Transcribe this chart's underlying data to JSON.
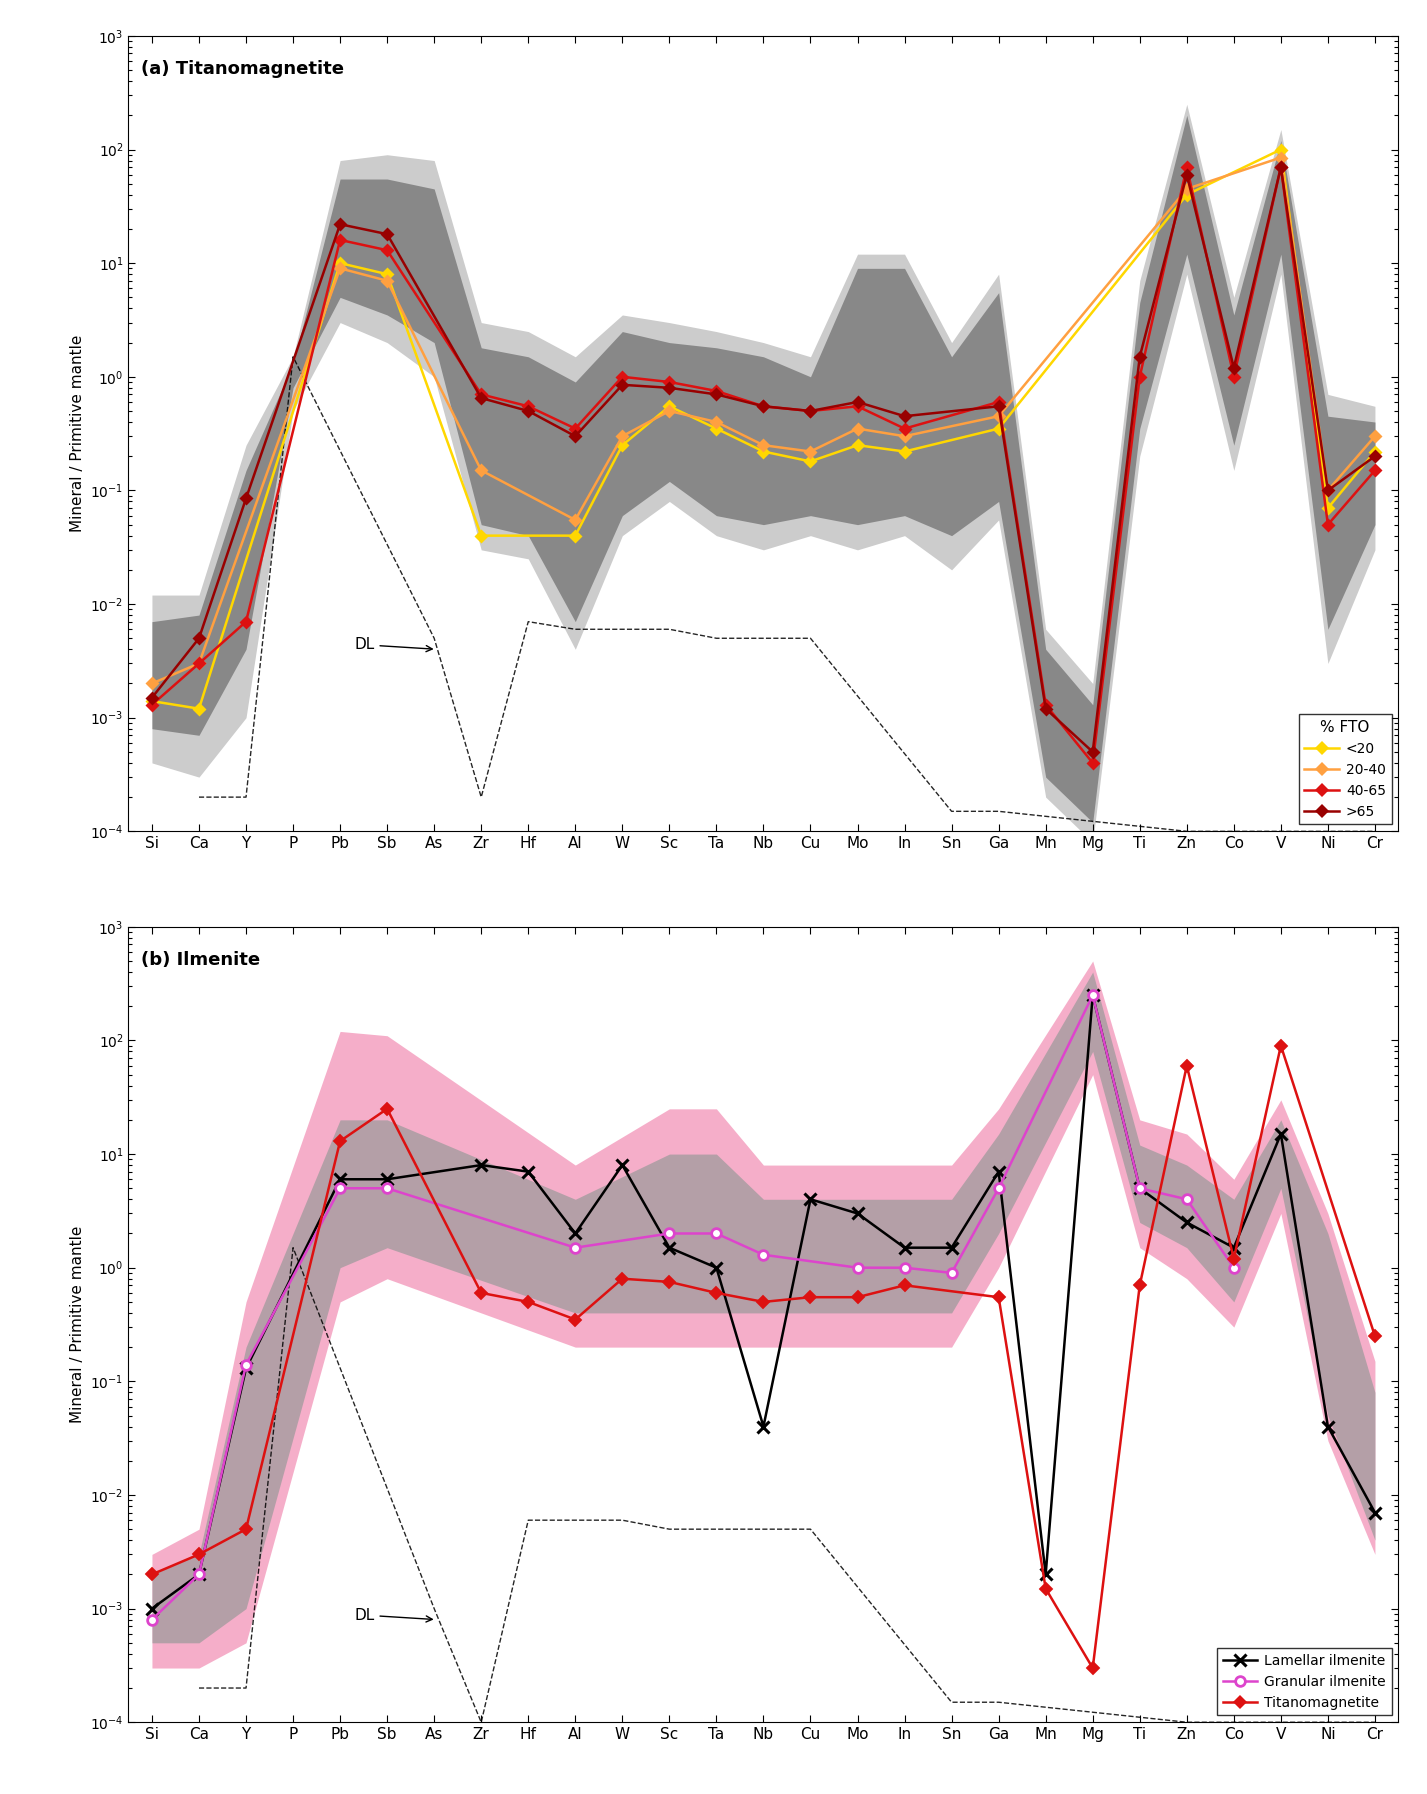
{
  "elements": [
    "Si",
    "Ca",
    "Y",
    "P",
    "Pb",
    "Sb",
    "As",
    "Zr",
    "Hf",
    "Al",
    "W",
    "Sc",
    "Ta",
    "Nb",
    "Cu",
    "Mo",
    "In",
    "Sn",
    "Ga",
    "Mn",
    "Mg",
    "Ti",
    "Zn",
    "Co",
    "V",
    "Ni",
    "Cr"
  ],
  "panel_a_title": "(a) Titanomagnetite",
  "panel_b_title": "(b) Ilmenite",
  "ylabel": "Mineral / Primitive mantle",
  "a_lt20": [
    0.0014,
    0.0012,
    null,
    null,
    10.0,
    8.0,
    null,
    0.04,
    null,
    0.04,
    0.25,
    0.55,
    0.35,
    0.22,
    0.18,
    0.25,
    0.22,
    null,
    0.35,
    null,
    null,
    null,
    40.0,
    null,
    100.0,
    0.07,
    0.22
  ],
  "a_2040": [
    0.002,
    0.003,
    null,
    null,
    9.0,
    7.0,
    null,
    0.15,
    null,
    0.055,
    0.3,
    0.5,
    0.4,
    0.25,
    0.22,
    0.35,
    0.3,
    null,
    0.45,
    null,
    null,
    null,
    45.0,
    null,
    85.0,
    0.1,
    0.3
  ],
  "a_4065": [
    0.0013,
    0.003,
    0.007,
    null,
    16.0,
    13.0,
    null,
    0.7,
    0.55,
    0.35,
    1.0,
    0.9,
    0.75,
    0.55,
    0.5,
    0.55,
    0.35,
    null,
    0.6,
    0.0013,
    0.0004,
    1.0,
    70.0,
    1.0,
    70.0,
    0.05,
    0.15
  ],
  "a_gt65": [
    0.0015,
    0.005,
    0.085,
    null,
    22.0,
    18.0,
    null,
    0.65,
    0.5,
    0.3,
    0.85,
    0.8,
    0.7,
    0.55,
    0.5,
    0.6,
    0.45,
    null,
    0.55,
    0.0012,
    0.0005,
    1.5,
    60.0,
    1.2,
    70.0,
    0.1,
    0.2
  ],
  "a_lt20_color": "#FFD700",
  "a_2040_color": "#FFA040",
  "a_4065_color": "#DD1111",
  "a_gt65_color": "#990000",
  "a_outer_upper": [
    0.012,
    0.012,
    0.25,
    1.5,
    80.0,
    90.0,
    80.0,
    3.0,
    2.5,
    1.5,
    3.5,
    3.0,
    2.5,
    2.0,
    1.5,
    12.0,
    12.0,
    2.0,
    8.0,
    0.006,
    0.002,
    7.0,
    250.0,
    5.0,
    150.0,
    0.7,
    0.55
  ],
  "a_outer_lower": [
    0.0004,
    0.0003,
    0.001,
    0.5,
    3.0,
    2.0,
    1.0,
    0.03,
    0.025,
    0.004,
    0.04,
    0.08,
    0.04,
    0.03,
    0.04,
    0.03,
    0.04,
    0.02,
    0.055,
    0.0002,
    8e-05,
    0.2,
    8.0,
    0.15,
    8.0,
    0.003,
    0.03
  ],
  "a_inner_upper": [
    0.007,
    0.008,
    0.15,
    1.3,
    55.0,
    55.0,
    45.0,
    1.8,
    1.5,
    0.9,
    2.5,
    2.0,
    1.8,
    1.5,
    1.0,
    9.0,
    9.0,
    1.5,
    5.5,
    0.004,
    0.0013,
    4.5,
    200.0,
    3.5,
    120.0,
    0.45,
    0.4
  ],
  "a_inner_lower": [
    0.0008,
    0.0007,
    0.004,
    0.8,
    5.0,
    3.5,
    2.0,
    0.05,
    0.04,
    0.007,
    0.06,
    0.12,
    0.06,
    0.05,
    0.06,
    0.05,
    0.06,
    0.04,
    0.08,
    0.0003,
    0.00012,
    0.35,
    12.0,
    0.25,
    12.0,
    0.006,
    0.05
  ],
  "a_dl_x": [
    1,
    2,
    3,
    6,
    7,
    8,
    9,
    10,
    11,
    12,
    13,
    14,
    17,
    18,
    22,
    23,
    25,
    26
  ],
  "a_dl_y": [
    0.0002,
    0.0002,
    1.5,
    0.005,
    0.0002,
    0.007,
    0.006,
    0.006,
    0.006,
    0.005,
    0.005,
    0.005,
    0.00015,
    0.00015,
    0.0001,
    0.0001,
    0.0001,
    0.0001
  ],
  "b_lamellar": [
    0.001,
    0.002,
    0.13,
    null,
    6.0,
    6.0,
    null,
    8.0,
    7.0,
    2.0,
    8.0,
    1.5,
    1.0,
    0.04,
    4.0,
    3.0,
    1.5,
    1.5,
    7.0,
    0.002,
    250.0,
    5.0,
    2.5,
    1.5,
    15.0,
    0.04,
    0.007
  ],
  "b_granular": [
    0.0008,
    0.002,
    0.14,
    null,
    5.0,
    5.0,
    null,
    null,
    null,
    1.5,
    null,
    2.0,
    2.0,
    1.3,
    null,
    1.0,
    1.0,
    0.9,
    5.0,
    null,
    250.0,
    5.0,
    4.0,
    1.0,
    null,
    null,
    null
  ],
  "b_titano": [
    0.002,
    0.003,
    0.005,
    null,
    13.0,
    25.0,
    null,
    0.6,
    0.5,
    0.35,
    0.8,
    0.75,
    0.6,
    0.5,
    0.55,
    0.55,
    0.7,
    null,
    0.55,
    0.0015,
    0.0003,
    0.7,
    60.0,
    1.2,
    90.0,
    null,
    0.25
  ],
  "b_pink_upper": [
    0.003,
    0.005,
    0.5,
    null,
    120.0,
    110.0,
    null,
    null,
    null,
    8.0,
    null,
    25.0,
    25.0,
    8.0,
    null,
    8.0,
    8.0,
    8.0,
    25.0,
    null,
    500.0,
    20.0,
    15.0,
    6.0,
    30.0,
    3.0,
    0.15
  ],
  "b_pink_lower": [
    0.0003,
    0.0003,
    0.0005,
    null,
    0.5,
    0.8,
    null,
    null,
    null,
    0.2,
    null,
    0.2,
    0.2,
    0.2,
    null,
    0.2,
    0.2,
    0.2,
    1.0,
    null,
    50.0,
    1.5,
    0.8,
    0.3,
    3.0,
    0.03,
    0.003
  ],
  "b_grey_upper": [
    0.002,
    0.003,
    0.2,
    null,
    20.0,
    20.0,
    null,
    null,
    null,
    4.0,
    null,
    10.0,
    10.0,
    4.0,
    null,
    4.0,
    4.0,
    4.0,
    15.0,
    null,
    400.0,
    12.0,
    8.0,
    4.0,
    20.0,
    2.0,
    0.08
  ],
  "b_grey_lower": [
    0.0005,
    0.0005,
    0.001,
    null,
    1.0,
    1.5,
    null,
    null,
    null,
    0.4,
    null,
    0.4,
    0.4,
    0.4,
    null,
    0.4,
    0.4,
    0.4,
    2.0,
    null,
    80.0,
    2.5,
    1.5,
    0.5,
    5.0,
    0.05,
    0.004
  ],
  "b_dl_x": [
    1,
    2,
    3,
    6,
    7,
    8,
    9,
    10,
    11,
    12,
    13,
    14,
    17,
    18,
    22,
    23,
    25,
    26
  ],
  "b_dl_y": [
    0.0002,
    0.0002,
    1.5,
    0.001,
    0.0001,
    0.006,
    0.006,
    0.006,
    0.005,
    0.005,
    0.005,
    0.005,
    0.00015,
    0.00015,
    0.0001,
    0.0001,
    0.0001,
    0.0001
  ]
}
